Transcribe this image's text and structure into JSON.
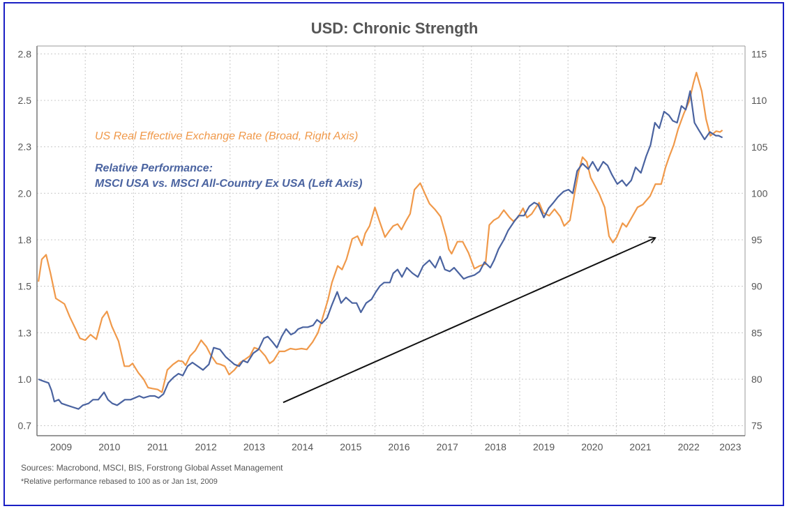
{
  "chart_data": {
    "type": "line",
    "title": "USD: Chronic Strength",
    "xlabel": "",
    "ylabel_left": "",
    "ylabel_right": "",
    "x_tick_labels": [
      "2009",
      "2010",
      "2011",
      "2012",
      "2013",
      "2014",
      "2015",
      "2016",
      "2017",
      "2018",
      "2019",
      "2020",
      "2021",
      "2022",
      "2023"
    ],
    "x_range": [
      2009.0,
      2023.67
    ],
    "left_axis": {
      "tick_labels": [
        "0.7",
        "1.0",
        "1.3",
        "1.5",
        "1.8",
        "2.0",
        "2.3",
        "2.5",
        "2.8"
      ],
      "tick_values": [
        0.75,
        1.0,
        1.25,
        1.5,
        1.75,
        2.0,
        2.25,
        2.5,
        2.75
      ],
      "range": [
        0.75,
        2.87
      ]
    },
    "right_axis": {
      "tick_labels": [
        "75",
        "80",
        "85",
        "90",
        "95",
        "100",
        "105",
        "110",
        "115"
      ],
      "tick_values": [
        75,
        80,
        85,
        90,
        95,
        100,
        105,
        110,
        115
      ],
      "range": [
        75,
        115.9
      ]
    },
    "grid": true,
    "series": [
      {
        "name": "US Real Effective Exchange Rate (Broad, Right Axis)",
        "axis": "right",
        "color": "#f0994a",
        "x": [
          2009.03,
          2009.1,
          2009.19,
          2009.28,
          2009.39,
          2009.57,
          2009.68,
          2009.8,
          2009.89,
          2010.0,
          2010.11,
          2010.23,
          2010.35,
          2010.45,
          2010.55,
          2010.69,
          2010.81,
          2010.91,
          2010.98,
          2011.1,
          2011.21,
          2011.3,
          2011.39,
          2011.5,
          2011.59,
          2011.7,
          2011.82,
          2011.93,
          2012.02,
          2012.08,
          2012.17,
          2012.28,
          2012.4,
          2012.51,
          2012.6,
          2012.72,
          2012.8,
          2012.89,
          2012.98,
          2013.09,
          2013.21,
          2013.3,
          2013.41,
          2013.5,
          2013.61,
          2013.73,
          2013.82,
          2013.9,
          2014.02,
          2014.13,
          2014.25,
          2014.36,
          2014.48,
          2014.59,
          2014.71,
          2014.82,
          2014.91,
          2015.03,
          2015.11,
          2015.23,
          2015.32,
          2015.41,
          2015.53,
          2015.64,
          2015.73,
          2015.8,
          2015.89,
          2016.0,
          2016.09,
          2016.21,
          2016.29,
          2016.38,
          2016.47,
          2016.55,
          2016.64,
          2016.73,
          2016.82,
          2016.94,
          2017.05,
          2017.13,
          2017.24,
          2017.36,
          2017.48,
          2017.53,
          2017.59,
          2017.71,
          2017.82,
          2017.94,
          2018.06,
          2018.17,
          2018.29,
          2018.37,
          2018.46,
          2018.56,
          2018.67,
          2018.79,
          2018.87,
          2018.96,
          2019.07,
          2019.15,
          2019.25,
          2019.4,
          2019.49,
          2019.61,
          2019.72,
          2019.84,
          2019.92,
          2020.04,
          2020.13,
          2020.22,
          2020.3,
          2020.39,
          2020.47,
          2020.56,
          2020.65,
          2020.76,
          2020.85,
          2020.93,
          2021.01,
          2021.13,
          2021.21,
          2021.32,
          2021.44,
          2021.55,
          2021.7,
          2021.81,
          2021.93,
          2022.02,
          2022.1,
          2022.19,
          2022.28,
          2022.4,
          2022.51,
          2022.6,
          2022.66,
          2022.77,
          2022.86,
          2022.95,
          2023.07,
          2023.15
        ],
        "values": [
          90.5,
          92.9,
          93.4,
          91.4,
          88.7,
          88.1,
          86.7,
          85.4,
          84.4,
          84.2,
          84.8,
          84.3,
          86.6,
          87.3,
          85.7,
          84.1,
          81.4,
          81.4,
          81.7,
          80.7,
          80.0,
          79.1,
          79.0,
          78.9,
          78.6,
          81.0,
          81.6,
          82.0,
          81.9,
          81.5,
          82.5,
          83.1,
          84.2,
          83.5,
          82.6,
          81.7,
          81.6,
          81.4,
          80.5,
          81.0,
          81.8,
          82.1,
          82.5,
          83.4,
          83.2,
          82.5,
          81.7,
          82.0,
          83.0,
          83.0,
          83.3,
          83.2,
          83.3,
          83.2,
          84.0,
          85.0,
          86.5,
          88.6,
          90.4,
          92.2,
          91.8,
          92.9,
          95.1,
          95.4,
          94.4,
          95.7,
          96.5,
          98.5,
          97.1,
          95.3,
          95.9,
          96.5,
          96.7,
          96.1,
          97.0,
          97.8,
          100.4,
          101.1,
          99.8,
          98.9,
          98.3,
          97.5,
          95.3,
          94.0,
          93.5,
          94.8,
          94.8,
          93.6,
          91.9,
          92.2,
          92.4,
          96.6,
          97.1,
          97.4,
          98.2,
          97.4,
          97.0,
          97.4,
          98.4,
          97.4,
          97.8,
          99.0,
          97.9,
          97.6,
          98.3,
          97.5,
          96.5,
          97.1,
          99.8,
          102.3,
          103.9,
          103.4,
          101.7,
          100.8,
          99.9,
          98.5,
          95.4,
          94.7,
          95.3,
          96.8,
          96.4,
          97.4,
          98.5,
          98.8,
          99.7,
          101.0,
          101.0,
          102.8,
          104.0,
          105.2,
          106.9,
          108.6,
          109.9,
          111.9,
          113.0,
          111.0,
          108.0,
          106.2,
          106.7,
          106.6
        ],
        "last_point": {
          "x": 2023.2,
          "value": 106.8
        }
      },
      {
        "name": "Relative Performance: MSCI USA vs. MSCI All-Country Ex USA (Left Axis)",
        "axis": "left",
        "color": "#4a63a0",
        "x": [
          2009.03,
          2009.13,
          2009.24,
          2009.3,
          2009.36,
          2009.45,
          2009.51,
          2009.62,
          2009.74,
          2009.86,
          2009.95,
          2010.07,
          2010.16,
          2010.27,
          2010.39,
          2010.47,
          2010.56,
          2010.66,
          2010.82,
          2010.94,
          2011.03,
          2011.12,
          2011.21,
          2011.34,
          2011.44,
          2011.52,
          2011.62,
          2011.72,
          2011.83,
          2011.93,
          2012.02,
          2012.12,
          2012.22,
          2012.33,
          2012.44,
          2012.56,
          2012.66,
          2012.79,
          2012.91,
          2013.0,
          2013.09,
          2013.19,
          2013.27,
          2013.36,
          2013.48,
          2013.59,
          2013.7,
          2013.78,
          2013.88,
          2013.97,
          2014.07,
          2014.16,
          2014.26,
          2014.34,
          2014.41,
          2014.51,
          2014.61,
          2014.72,
          2014.8,
          2014.9,
          2015.01,
          2015.11,
          2015.22,
          2015.3,
          2015.4,
          2015.53,
          2015.62,
          2015.71,
          2015.82,
          2015.93,
          2016.02,
          2016.1,
          2016.19,
          2016.31,
          2016.38,
          2016.47,
          2016.56,
          2016.66,
          2016.78,
          2016.89,
          2017.0,
          2017.13,
          2017.25,
          2017.35,
          2017.45,
          2017.55,
          2017.64,
          2017.74,
          2017.84,
          2017.93,
          2018.06,
          2018.17,
          2018.27,
          2018.39,
          2018.47,
          2018.56,
          2018.67,
          2018.76,
          2018.89,
          2018.98,
          2019.09,
          2019.2,
          2019.3,
          2019.38,
          2019.5,
          2019.6,
          2019.7,
          2019.79,
          2019.91,
          2020.01,
          2020.1,
          2020.19,
          2020.3,
          2020.42,
          2020.51,
          2020.62,
          2020.73,
          2020.82,
          2020.91,
          2021.02,
          2021.12,
          2021.21,
          2021.31,
          2021.4,
          2021.51,
          2021.62,
          2021.71,
          2021.8,
          2021.89,
          2021.99,
          2022.09,
          2022.17,
          2022.26,
          2022.35,
          2022.44,
          2022.53,
          2022.62,
          2022.71,
          2022.83,
          2022.94,
          2023.06,
          2023.12
        ],
        "values": [
          1.0,
          0.99,
          0.98,
          0.94,
          0.88,
          0.89,
          0.87,
          0.86,
          0.85,
          0.84,
          0.86,
          0.87,
          0.89,
          0.89,
          0.93,
          0.89,
          0.87,
          0.86,
          0.89,
          0.89,
          0.9,
          0.91,
          0.9,
          0.91,
          0.91,
          0.9,
          0.92,
          0.98,
          1.01,
          1.03,
          1.02,
          1.07,
          1.09,
          1.07,
          1.05,
          1.08,
          1.17,
          1.16,
          1.12,
          1.1,
          1.08,
          1.07,
          1.1,
          1.09,
          1.14,
          1.16,
          1.22,
          1.23,
          1.2,
          1.17,
          1.23,
          1.27,
          1.24,
          1.25,
          1.27,
          1.28,
          1.28,
          1.29,
          1.32,
          1.3,
          1.33,
          1.4,
          1.47,
          1.41,
          1.44,
          1.41,
          1.41,
          1.36,
          1.41,
          1.43,
          1.47,
          1.5,
          1.52,
          1.52,
          1.57,
          1.59,
          1.55,
          1.6,
          1.57,
          1.55,
          1.61,
          1.64,
          1.6,
          1.66,
          1.59,
          1.58,
          1.6,
          1.57,
          1.54,
          1.55,
          1.56,
          1.58,
          1.63,
          1.6,
          1.64,
          1.7,
          1.75,
          1.8,
          1.85,
          1.88,
          1.88,
          1.93,
          1.95,
          1.94,
          1.87,
          1.92,
          1.95,
          1.98,
          2.01,
          2.02,
          2.0,
          2.12,
          2.16,
          2.13,
          2.17,
          2.12,
          2.17,
          2.15,
          2.1,
          2.05,
          2.07,
          2.04,
          2.07,
          2.14,
          2.11,
          2.2,
          2.26,
          2.38,
          2.35,
          2.44,
          2.42,
          2.39,
          2.38,
          2.47,
          2.45,
          2.55,
          2.38,
          2.34,
          2.29,
          2.33,
          2.31,
          2.31
        ],
        "last_point": {
          "x": 2023.2,
          "value": 2.3
        }
      }
    ],
    "annotations": [
      {
        "type": "arrow",
        "from": {
          "x": 2014.1,
          "right_axis_value": 77.5
        },
        "to": {
          "x": 2021.8,
          "right_axis_value": 95.2
        },
        "color": "#111111",
        "meaning": "upward trend"
      }
    ],
    "legend": {
      "placement": "top-left",
      "items": [
        {
          "text": "US Real Effective Exchange Rate (Broad, Right Axis)",
          "color": "#f0994a"
        },
        {
          "text": "Relative Performance:",
          "color": "#4a63a0"
        },
        {
          "text": "MSCI USA vs. MSCI All-Country Ex USA (Left Axis)",
          "color": "#4a63a0"
        }
      ]
    }
  },
  "footnotes": {
    "sources": "Sources: Macrobond, MSCI, BIS, Forstrong Global Asset Management",
    "note": "*Relative performance rebased to 100 as or Jan 1st, 2009"
  },
  "colors": {
    "frame": "#1a1fc4",
    "reer": "#f0994a",
    "relperf": "#4a63a0",
    "arrow": "#111111",
    "grid": "#c8c8c8",
    "axis_text": "#555555"
  }
}
